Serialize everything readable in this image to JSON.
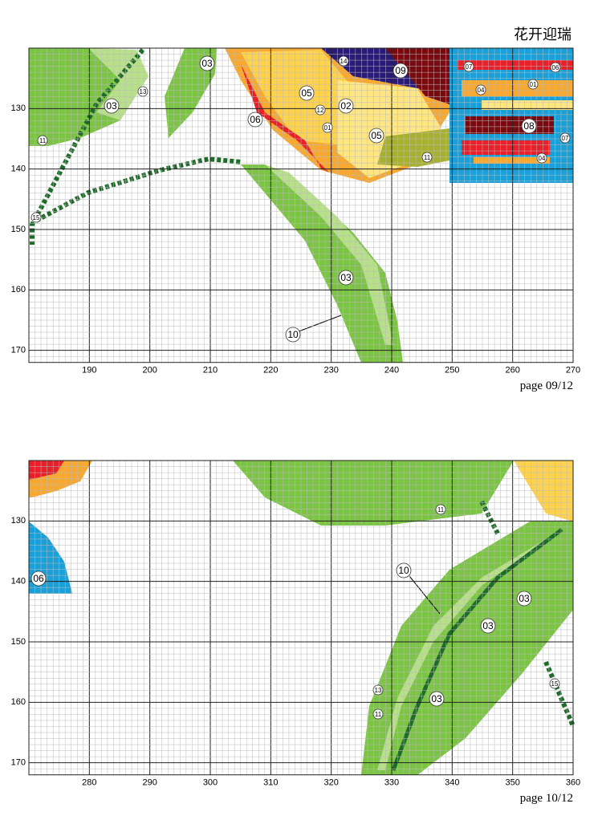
{
  "title": "花开迎瑞",
  "panels": [
    {
      "page_label": "page 09/12",
      "x_labels": [
        "190",
        "200",
        "210",
        "220",
        "230",
        "240",
        "250",
        "260",
        "270"
      ],
      "y_labels": [
        "130",
        "140",
        "150",
        "160",
        "170"
      ],
      "symbols": [
        "03",
        "13",
        "03",
        "11",
        "05",
        "12",
        "02",
        "06",
        "01",
        "05",
        "11",
        "14",
        "09",
        "07",
        "06",
        "04",
        "01",
        "08",
        "07",
        "04",
        "15",
        "03",
        "10"
      ]
    },
    {
      "page_label": "page 10/12",
      "x_labels": [
        "280",
        "290",
        "300",
        "310",
        "320",
        "330",
        "340",
        "350",
        "360"
      ],
      "y_labels": [
        "130",
        "140",
        "150",
        "160",
        "170"
      ],
      "symbols": [
        "06",
        "11",
        "10",
        "03",
        "03",
        "13",
        "03",
        "11",
        "15"
      ]
    }
  ]
}
